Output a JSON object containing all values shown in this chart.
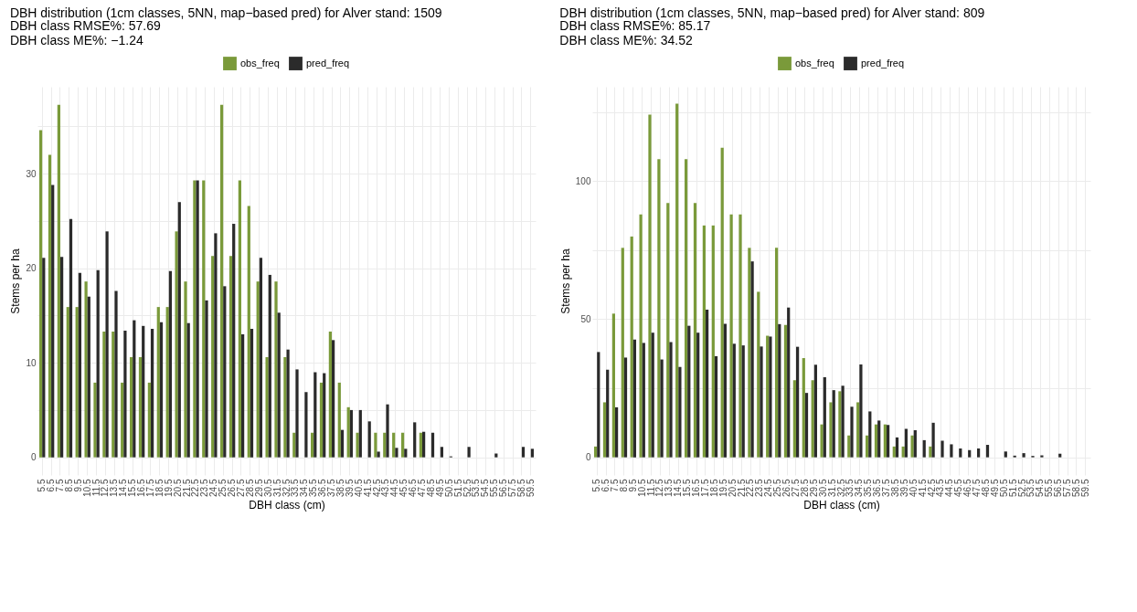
{
  "chart_data": [
    {
      "type": "bar",
      "title": "DBH distribution (1cm classes, 5NN, map−based pred) for Alver stand: 1509",
      "subtitle": "DBH class RMSE%: 57.69\nDBH class ME%: −1.24",
      "xlabel": "DBH class (cm)",
      "ylabel": "Stems per ha",
      "legend": "top",
      "grid": true,
      "categories": [
        "5.5",
        "6.5",
        "7.5",
        "8.5",
        "9.5",
        "10.5",
        "11.5",
        "12.5",
        "13.5",
        "14.5",
        "15.5",
        "16.5",
        "17.5",
        "18.5",
        "19.5",
        "20.5",
        "21.5",
        "22.5",
        "23.5",
        "24.5",
        "25.5",
        "26.5",
        "27.5",
        "28.5",
        "29.5",
        "30.5",
        "31.5",
        "32.5",
        "33.5",
        "34.5",
        "35.5",
        "36.5",
        "37.5",
        "38.5",
        "39.5",
        "40.5",
        "41.5",
        "42.5",
        "43.5",
        "44.5",
        "45.5",
        "46.5",
        "47.5",
        "48.5",
        "49.5",
        "50.5",
        "51.5",
        "52.5",
        "53.5",
        "54.5",
        "55.5",
        "56.5",
        "57.5",
        "58.5",
        "59.5"
      ],
      "ylim": [
        -1.87,
        39.2
      ],
      "yticks": [
        0,
        {
          "value": 5,
          "label": null
        },
        10,
        {
          "value": 15,
          "label": null
        },
        20,
        {
          "value": 25,
          "label": null
        },
        30,
        {
          "value": 35,
          "label": null
        }
      ],
      "series": [
        {
          "name": "obs_freq",
          "color": "#7a9a3a",
          "values": [
            34.6,
            32.0,
            37.3,
            15.9,
            15.9,
            18.6,
            7.9,
            13.3,
            13.3,
            7.9,
            10.6,
            10.6,
            7.9,
            15.9,
            15.9,
            23.9,
            18.6,
            29.3,
            29.3,
            21.3,
            37.3,
            21.3,
            29.3,
            26.6,
            18.6,
            10.6,
            18.6,
            10.6,
            2.6,
            0,
            2.6,
            7.9,
            13.3,
            7.9,
            5.3,
            2.6,
            0,
            2.6,
            2.6,
            2.6,
            2.6,
            0,
            2.6,
            0,
            0,
            0,
            0,
            0,
            0,
            0,
            0,
            0,
            0,
            0,
            0
          ]
        },
        {
          "name": "pred_freq",
          "color": "#2b2b2b",
          "values": [
            21.1,
            28.8,
            21.2,
            25.2,
            19.5,
            17.0,
            19.8,
            23.9,
            17.6,
            13.4,
            14.5,
            13.9,
            13.6,
            14.3,
            19.7,
            27.0,
            14.2,
            29.3,
            16.6,
            23.7,
            18.1,
            24.7,
            13.0,
            13.6,
            21.1,
            19.3,
            15.3,
            11.4,
            9.3,
            6.9,
            9.0,
            8.9,
            12.4,
            2.9,
            5.0,
            5.0,
            3.8,
            0.6,
            5.6,
            1.0,
            0.9,
            3.7,
            2.7,
            2.6,
            1.1,
            0.1,
            0,
            1.1,
            0,
            0,
            0.4,
            0,
            0,
            1.1,
            0.9
          ]
        }
      ]
    },
    {
      "type": "bar",
      "title": "DBH distribution (1cm classes, 5NN, map−based pred) for Alver stand: 809",
      "subtitle": "DBH class RMSE%: 85.17\nDBH class ME%: 34.52",
      "xlabel": "DBH class (cm)",
      "ylabel": "Stems per ha",
      "legend": "top",
      "grid": true,
      "categories": [
        "5.5",
        "6.5",
        "7.5",
        "8.5",
        "9.5",
        "10.5",
        "11.5",
        "12.5",
        "13.5",
        "14.5",
        "15.5",
        "16.5",
        "17.5",
        "18.5",
        "19.5",
        "20.5",
        "21.5",
        "22.5",
        "23.5",
        "24.5",
        "25.5",
        "26.5",
        "27.5",
        "28.5",
        "29.5",
        "30.5",
        "31.5",
        "32.5",
        "33.5",
        "34.5",
        "35.5",
        "36.5",
        "37.5",
        "38.5",
        "39.5",
        "40.5",
        "41.5",
        "42.5",
        "43.5",
        "44.5",
        "45.5",
        "46.5",
        "47.5",
        "48.5",
        "49.5",
        "50.5",
        "51.5",
        "52.5",
        "53.5",
        "54.5",
        "55.5",
        "56.5",
        "57.5",
        "58.5",
        "59.5"
      ],
      "ylim": [
        -6.4,
        134.1
      ],
      "yticks": [
        0,
        {
          "value": 25,
          "label": null
        },
        50,
        {
          "value": 75,
          "label": null
        },
        100,
        {
          "value": 125,
          "label": null
        }
      ],
      "series": [
        {
          "name": "obs_freq",
          "color": "#7a9a3a",
          "values": [
            3.9,
            19.9,
            52.0,
            75.8,
            79.9,
            87.9,
            124.0,
            107.9,
            92.0,
            128.0,
            107.9,
            92.0,
            83.9,
            83.9,
            112.0,
            87.9,
            87.9,
            75.8,
            59.9,
            44.0,
            75.8,
            47.9,
            27.9,
            35.9,
            27.9,
            11.9,
            19.9,
            23.9,
            7.9,
            19.9,
            7.9,
            11.9,
            11.9,
            3.9,
            3.9,
            7.9,
            0,
            3.9,
            0,
            0,
            0,
            0,
            0,
            0,
            0,
            0,
            0,
            0,
            0,
            0,
            0,
            0,
            0,
            0,
            0
          ]
        },
        {
          "name": "pred_freq",
          "color": "#2b2b2b",
          "values": [
            38.1,
            31.7,
            18.1,
            36.1,
            42.6,
            41.4,
            45.1,
            35.4,
            41.7,
            32.7,
            47.6,
            45.1,
            53.4,
            36.6,
            48.3,
            41.1,
            40.5,
            70.9,
            40.1,
            43.7,
            48.2,
            54.2,
            40.0,
            23.3,
            33.5,
            29.0,
            24.3,
            25.9,
            18.3,
            33.6,
            16.6,
            13.3,
            11.7,
            7.2,
            10.3,
            9.8,
            6.2,
            12.5,
            6.0,
            4.7,
            3.2,
            2.6,
            3.2,
            4.5,
            0,
            2.1,
            0.6,
            1.5,
            0.5,
            0.7,
            0,
            1.3,
            0,
            0,
            0
          ]
        }
      ]
    }
  ]
}
